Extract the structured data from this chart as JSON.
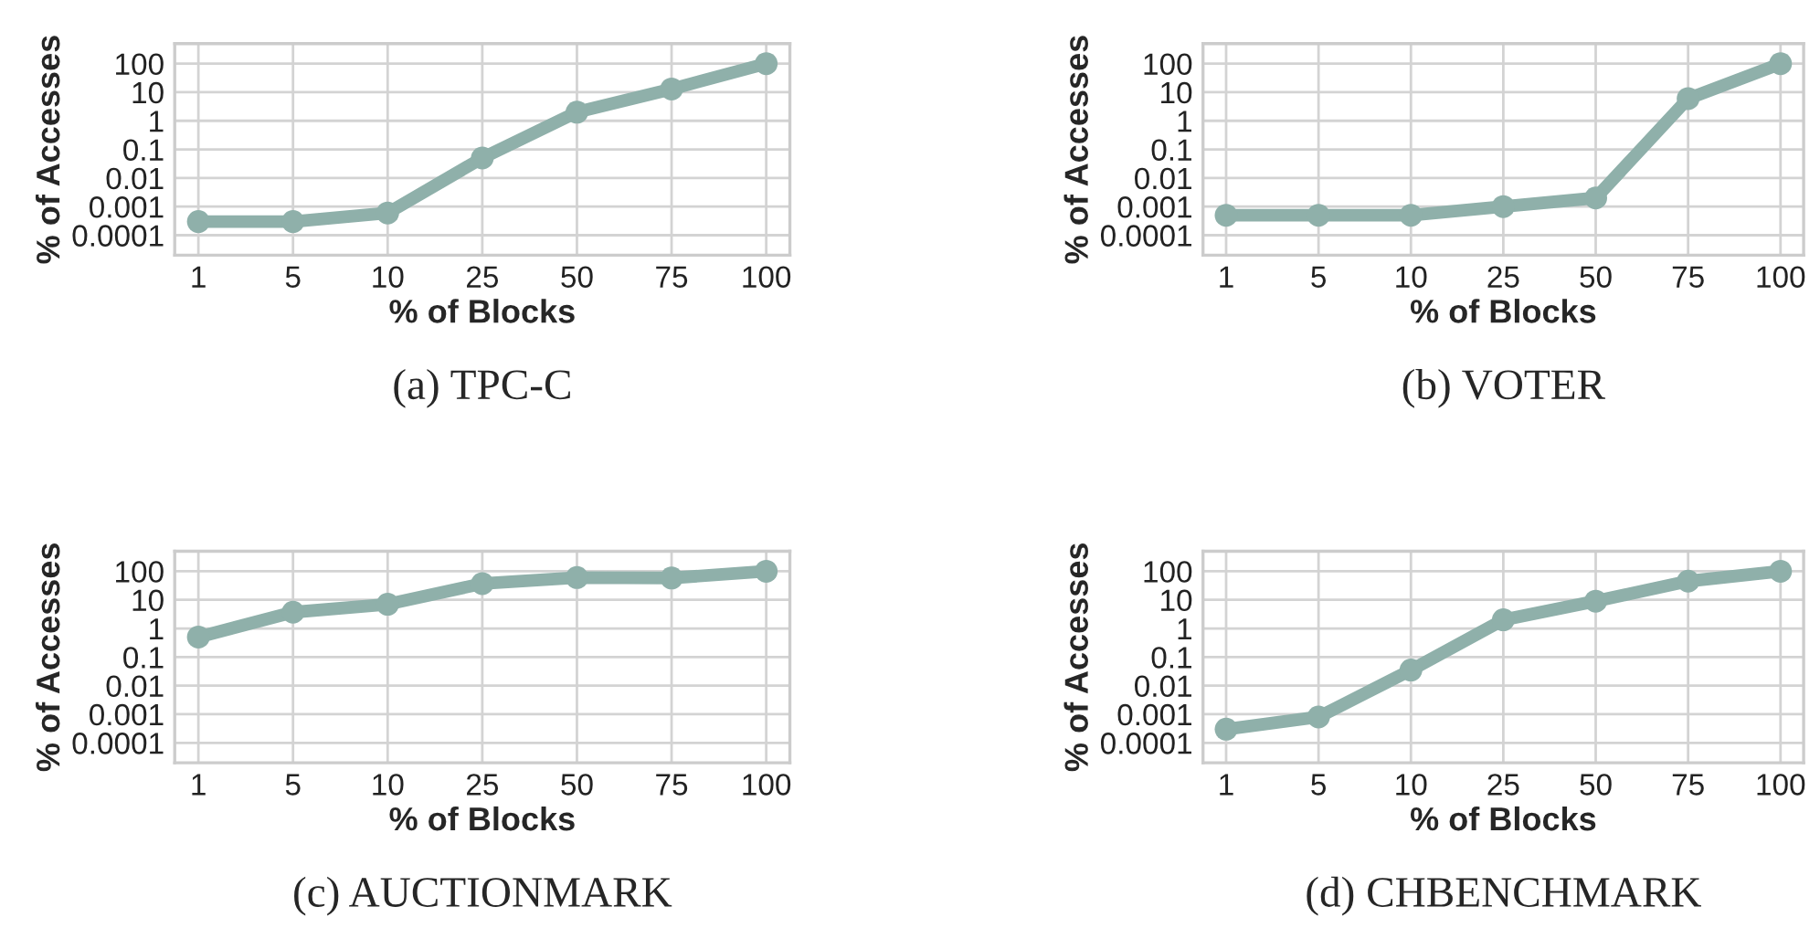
{
  "chart_data": [
    {
      "type": "line",
      "title": "(a) TPC-C",
      "xlabel": "% of Blocks",
      "ylabel": "% of Accesses",
      "categories": [
        "1",
        "5",
        "10",
        "25",
        "50",
        "75",
        "100"
      ],
      "log": "y",
      "ylim": [
        2e-05,
        500
      ],
      "yticks": [
        0.0001,
        0.001,
        0.01,
        0.1,
        1,
        10,
        100
      ],
      "grid": true,
      "marker": "circle",
      "line_style": "solid",
      "series": [
        {
          "color": "#8fb0aa",
          "values": [
            0.0003,
            0.0003,
            0.0006,
            0.05,
            2,
            13,
            100
          ]
        }
      ]
    },
    {
      "type": "line",
      "title": "(b) VOTER",
      "xlabel": "% of Blocks",
      "ylabel": "% of Accesses",
      "categories": [
        "1",
        "5",
        "10",
        "25",
        "50",
        "75",
        "100"
      ],
      "log": "y",
      "ylim": [
        2e-05,
        500
      ],
      "yticks": [
        0.0001,
        0.001,
        0.01,
        0.1,
        1,
        10,
        100
      ],
      "grid": true,
      "marker": "circle",
      "line_style": "solid",
      "series": [
        {
          "color": "#8fb0aa",
          "values": [
            0.0005,
            0.0005,
            0.0005,
            0.001,
            0.002,
            6,
            100
          ]
        }
      ]
    },
    {
      "type": "line",
      "title": "(c) AUCTIONMARK",
      "xlabel": "% of Blocks",
      "ylabel": "% of Accesses",
      "categories": [
        "1",
        "5",
        "10",
        "25",
        "50",
        "75",
        "100"
      ],
      "log": "y",
      "ylim": [
        2e-05,
        500
      ],
      "yticks": [
        0.0001,
        0.001,
        0.01,
        0.1,
        1,
        10,
        100
      ],
      "grid": true,
      "marker": "circle",
      "line_style": "solid",
      "series": [
        {
          "color": "#8fb0aa",
          "values": [
            0.5,
            3.7,
            7,
            37,
            60,
            58,
            100
          ]
        }
      ]
    },
    {
      "type": "line",
      "title": "(d) CHBENCHMARK",
      "xlabel": "% of Blocks",
      "ylabel": "% of Accesses",
      "categories": [
        "1",
        "5",
        "10",
        "25",
        "50",
        "75",
        "100"
      ],
      "log": "y",
      "ylim": [
        2e-05,
        500
      ],
      "yticks": [
        0.0001,
        0.001,
        0.01,
        0.1,
        1,
        10,
        100
      ],
      "grid": true,
      "marker": "circle",
      "line_style": "solid",
      "series": [
        {
          "color": "#8fb0aa",
          "values": [
            0.0003,
            0.0008,
            0.035,
            2,
            9,
            45,
            100
          ]
        }
      ]
    }
  ]
}
